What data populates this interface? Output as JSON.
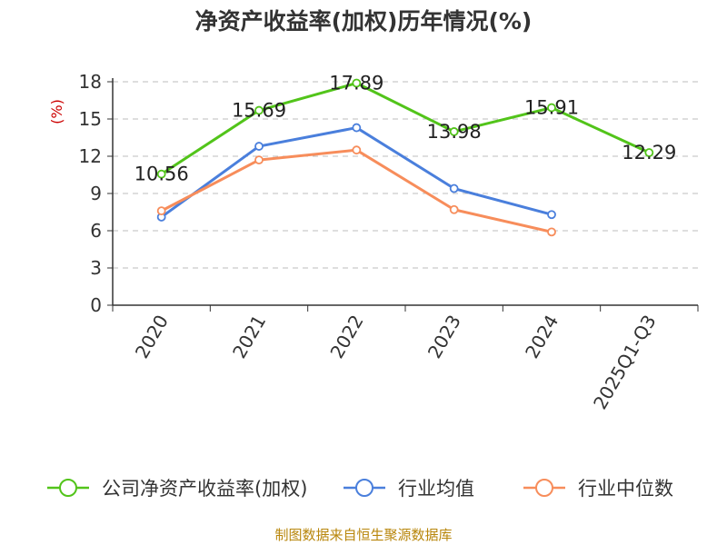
{
  "title": "净资产收益率(加权)历年情况(%)",
  "source": "制图数据来自恒生聚源数据库",
  "chart_data": {
    "type": "line",
    "ylabel": "(%)",
    "ylim": [
      0,
      18
    ],
    "yticks": [
      0,
      3,
      6,
      9,
      12,
      15,
      18
    ],
    "categories": [
      "2020",
      "2021",
      "2022",
      "2023",
      "2024",
      "2025Q1-Q3"
    ],
    "grid": true,
    "legend_position": "bottom",
    "series": [
      {
        "name": "公司净资产收益率(加权)",
        "color": "#52c41a",
        "values": [
          10.56,
          15.69,
          17.89,
          13.98,
          15.91,
          12.29
        ],
        "labels": [
          "10.56",
          "15.69",
          "17.89",
          "13.98",
          "15.91",
          "12.29"
        ]
      },
      {
        "name": "行业均值",
        "color": "#4a7fdc",
        "values": [
          7.1,
          12.8,
          14.3,
          9.4,
          7.3,
          null
        ]
      },
      {
        "name": "行业中位数",
        "color": "#f78d5b",
        "values": [
          7.6,
          11.7,
          12.5,
          7.7,
          5.9,
          null
        ]
      }
    ]
  }
}
